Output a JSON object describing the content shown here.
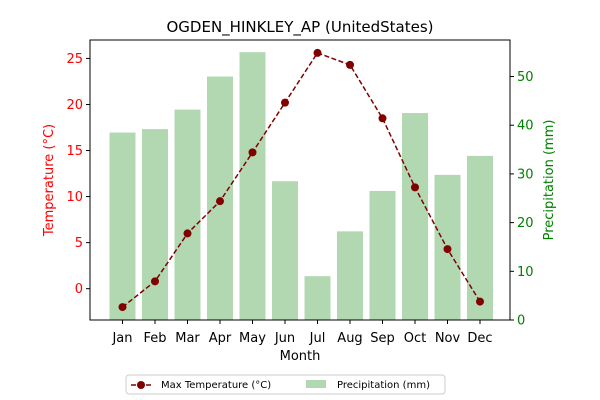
{
  "chart_data": {
    "type": "bar+line",
    "title": "OGDEN_HINKLEY_AP (UnitedStates)",
    "xlabel": "Month",
    "categories": [
      "Jan",
      "Feb",
      "Mar",
      "Apr",
      "May",
      "Jun",
      "Jul",
      "Aug",
      "Sep",
      "Oct",
      "Nov",
      "Dec"
    ],
    "left_axis": {
      "label": "Temperature (°C)",
      "color": "#ff0000",
      "ylim": [
        -3.4,
        27.0
      ],
      "ticks": [
        0,
        5,
        10,
        15,
        20,
        25
      ],
      "tick_labels": [
        "0",
        "5",
        "10",
        "15",
        "20",
        "25"
      ]
    },
    "right_axis": {
      "label": "Precipitation (mm)",
      "color": "#008000",
      "ylim": [
        0,
        57.5
      ],
      "ticks": [
        0,
        10,
        20,
        30,
        40,
        50
      ],
      "tick_labels": [
        "0",
        "10",
        "20",
        "30",
        "40",
        "50"
      ]
    },
    "series": [
      {
        "name": "Max Temperature (°C)",
        "kind": "line",
        "axis": "left",
        "color": "#800000",
        "values": [
          -2.0,
          0.8,
          6.0,
          9.5,
          14.8,
          20.2,
          25.6,
          24.3,
          18.5,
          11.0,
          4.3,
          -1.4
        ]
      },
      {
        "name": "Precipitation (mm)",
        "kind": "bar",
        "axis": "right",
        "color": "#b1d8b1",
        "values": [
          38.5,
          39.2,
          43.2,
          50.0,
          55.0,
          28.5,
          9.0,
          18.2,
          26.5,
          42.5,
          29.8,
          33.7
        ]
      }
    ],
    "legend": "bottom-center"
  }
}
